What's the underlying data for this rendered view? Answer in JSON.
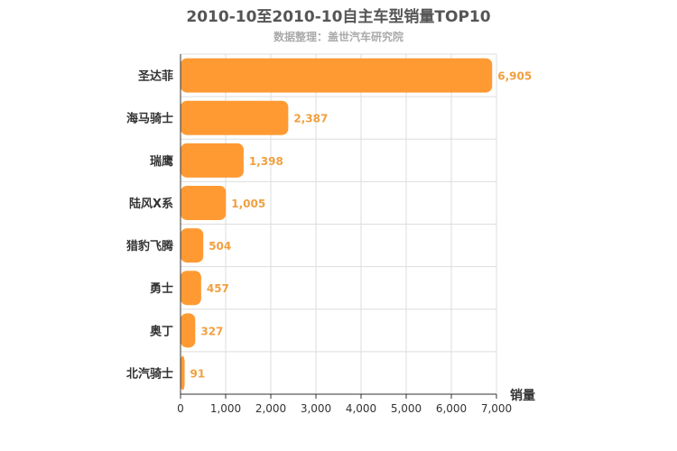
{
  "chart_data": {
    "type": "bar",
    "orientation": "horizontal",
    "title": "2010-10至2010-10自主车型销量TOP10",
    "subtitle": "数据整理：盖世汽车研究院",
    "xlabel": "销量",
    "ylabel": "",
    "categories": [
      "圣达菲",
      "海马骑士",
      "瑞鹰",
      "陆风X系",
      "猎豹飞腾",
      "勇士",
      "奥丁",
      "北汽骑士"
    ],
    "values": [
      6905,
      2387,
      1398,
      1005,
      504,
      457,
      327,
      91
    ],
    "value_labels": [
      "6,905",
      "2,387",
      "1,398",
      "1,005",
      "504",
      "457",
      "327",
      "91"
    ],
    "xlim": [
      0,
      7000
    ],
    "xticks": [
      0,
      1000,
      2000,
      3000,
      4000,
      5000,
      6000,
      7000
    ],
    "xtick_labels": [
      "0",
      "1,000",
      "2,000",
      "3,000",
      "4,000",
      "5,000",
      "6,000",
      "7,000"
    ],
    "grid": true,
    "colors": {
      "bar": "#ff9a33",
      "label": "#f0a040"
    }
  }
}
